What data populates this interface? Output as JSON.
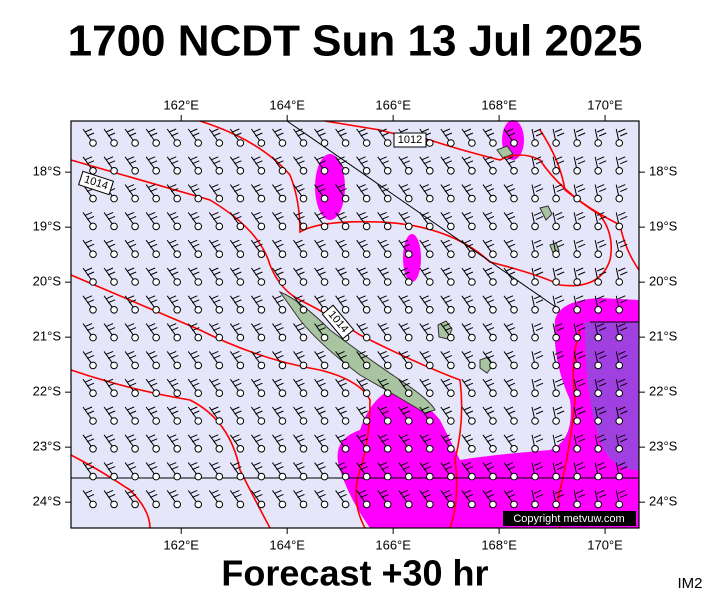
{
  "header": {
    "title": "1700 NCDT Sun 13 Jul 2025"
  },
  "map": {
    "lon_lim": [
      159.92,
      170.64
    ],
    "lat_lim": [
      -17.07,
      -24.47
    ],
    "lon_ticks": [
      {
        "value": 162,
        "label": "162°E"
      },
      {
        "value": 164,
        "label": "164°E"
      },
      {
        "value": 166,
        "label": "166°E"
      },
      {
        "value": 168,
        "label": "168°E"
      },
      {
        "value": 170,
        "label": "170°E"
      }
    ],
    "lat_ticks": [
      {
        "value": -18,
        "label": "18°S"
      },
      {
        "value": -19,
        "label": "19°S"
      },
      {
        "value": -20,
        "label": "20°S"
      },
      {
        "value": -21,
        "label": "21°S"
      },
      {
        "value": -22,
        "label": "22°S"
      },
      {
        "value": -23,
        "label": "23°S"
      },
      {
        "value": -24,
        "label": "24°S"
      }
    ],
    "isobar_labels": [
      "1012",
      "1014",
      "1014"
    ],
    "copyright": "Copyright metvuw.com"
  },
  "footer": {
    "forecast": "Forecast +30 hr",
    "code": "IM2"
  }
}
